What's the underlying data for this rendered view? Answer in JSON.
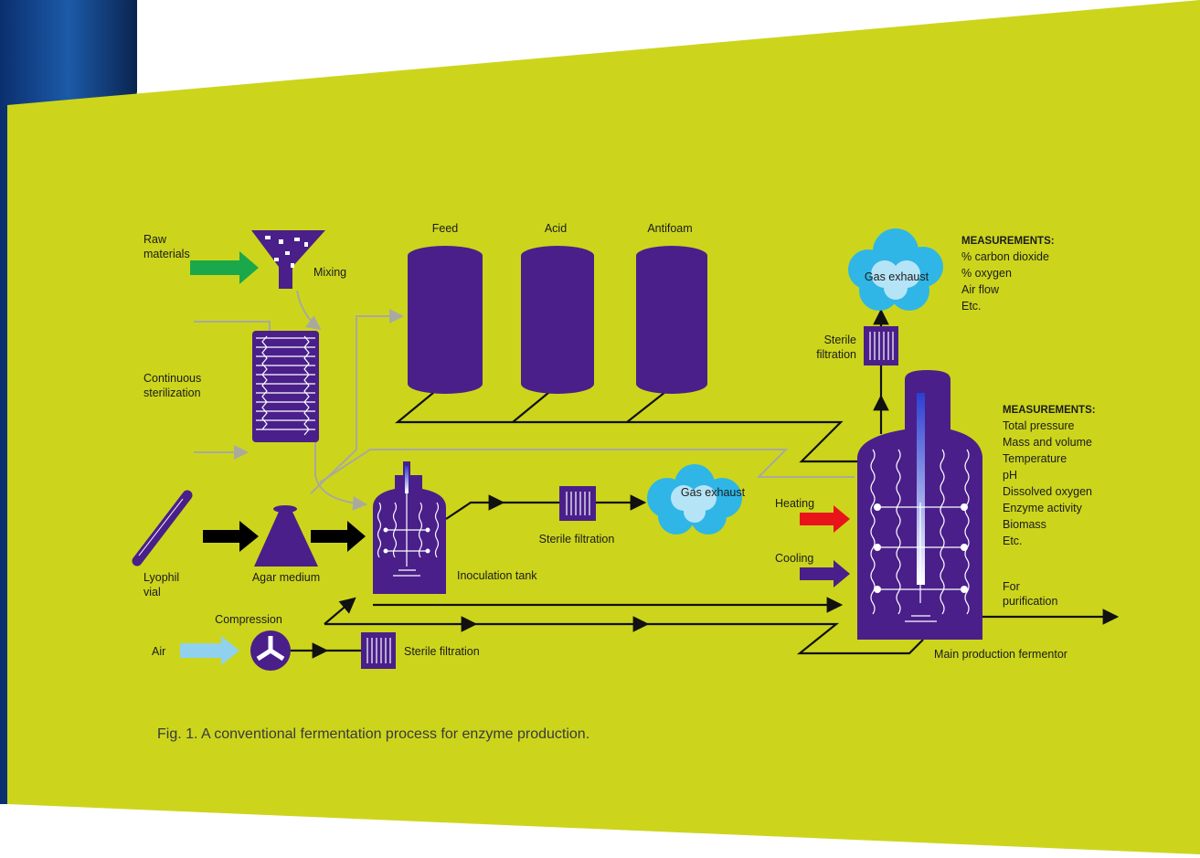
{
  "labels": {
    "raw_materials": [
      "Raw",
      "materials"
    ],
    "mixing": "Mixing",
    "feed": "Feed",
    "acid": "Acid",
    "antifoam": "Antifoam",
    "continuous_sterilization": [
      "Continuous",
      "sterilization"
    ],
    "lyophil_vial": [
      "Lyophil",
      "vial"
    ],
    "agar_medium": "Agar medium",
    "inoculation_tank": "Inoculation  tank",
    "sterile_filtration_inoculation": "Sterile filtration",
    "gas_exhaust_inoculation": "Gas exhaust",
    "compression": "Compression",
    "air": "Air",
    "sterile_filtration_air": "Sterile filtration",
    "sterile_filtration_main": [
      "Sterile",
      "filtration"
    ],
    "gas_exhaust_main": "Gas exhaust",
    "heating": "Heating",
    "cooling": "Cooling",
    "for_purification": [
      "For",
      "purification"
    ],
    "main_production_fermentor": "Main production fermentor"
  },
  "measurements": [
    {
      "title": "MEASUREMENTS:",
      "items": [
        "% carbon dioxide",
        "% oxygen",
        "Air flow",
        "Etc."
      ]
    },
    {
      "title": "MEASUREMENTS:",
      "items": [
        "Total pressure",
        "Mass and volume",
        "Temperature",
        "pH",
        "Dissolved oxygen",
        "Enzyme activity",
        "Biomass",
        "Etc."
      ]
    }
  ],
  "caption": "Fig. 1. A conventional fermentation process for enzyme production."
}
